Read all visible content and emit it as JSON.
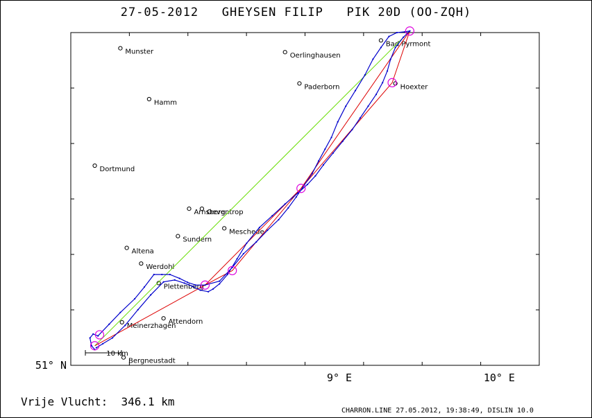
{
  "title": "27-05-2012   GHEYSEN FILIP   PIK 20D (OO-ZQH)",
  "summary": "Vrije Vlucht:  346.1 km",
  "footer": "CHARRON.LINE 27.05.2012, 19:38:49, DISLIN 10.0",
  "colors": {
    "track": "#0000cc",
    "task": "#dd0000",
    "free_flight": "#66dd00",
    "turnpoint": "#dd00dd"
  },
  "chart_data": {
    "type": "scatter",
    "xlim": [
      7.32,
      10.25
    ],
    "ylim": [
      51.0,
      51.85
    ],
    "x_ticks": [
      {
        "value": 9.0,
        "label": "9° E"
      },
      {
        "value": 10.0,
        "label": "10° E"
      }
    ],
    "y_ticks": [
      {
        "value": 51.0,
        "label": "51° N"
      }
    ],
    "scale_bar": {
      "km": 10,
      "label": "10 km"
    },
    "towns": [
      {
        "name": "Munster",
        "lon": 7.63,
        "lat": 51.81
      },
      {
        "name": "Oerlinghausen",
        "lon": 8.66,
        "lat": 51.8
      },
      {
        "name": "Bad Pyrmont",
        "lon": 9.26,
        "lat": 51.83
      },
      {
        "name": "Hoexter",
        "lon": 9.35,
        "lat": 51.72
      },
      {
        "name": "Hamm",
        "lon": 7.81,
        "lat": 51.68
      },
      {
        "name": "Paderborn",
        "lon": 8.75,
        "lat": 51.72
      },
      {
        "name": "Dortmund",
        "lon": 7.47,
        "lat": 51.51
      },
      {
        "name": "Arnsberg",
        "lon": 8.06,
        "lat": 51.4
      },
      {
        "name": "Oeventrop",
        "lon": 8.14,
        "lat": 51.4
      },
      {
        "name": "Altena",
        "lon": 7.67,
        "lat": 51.3
      },
      {
        "name": "Werdohl",
        "lon": 7.76,
        "lat": 51.26
      },
      {
        "name": "Sundern",
        "lon": 7.99,
        "lat": 51.33
      },
      {
        "name": "Meschede",
        "lon": 8.28,
        "lat": 51.35
      },
      {
        "name": "Plettenberg",
        "lon": 7.87,
        "lat": 51.21
      },
      {
        "name": "Attendorn",
        "lon": 7.9,
        "lat": 51.12
      },
      {
        "name": "Meinerzhagen",
        "lon": 7.64,
        "lat": 51.11
      },
      {
        "name": "Bergneustadt",
        "lon": 7.65,
        "lat": 51.02
      }
    ],
    "track": [
      [
        7.47,
        51.04
      ],
      [
        7.45,
        51.05
      ],
      [
        7.44,
        51.07
      ],
      [
        7.46,
        51.08
      ],
      [
        7.49,
        51.075
      ],
      [
        7.56,
        51.105
      ],
      [
        7.63,
        51.135
      ],
      [
        7.72,
        51.17
      ],
      [
        7.78,
        51.2
      ],
      [
        7.84,
        51.232
      ],
      [
        7.89,
        51.232
      ],
      [
        7.94,
        51.232
      ],
      [
        8.0,
        51.222
      ],
      [
        8.05,
        51.212
      ],
      [
        8.1,
        51.205
      ],
      [
        8.16,
        51.205
      ],
      [
        8.25,
        51.215
      ],
      [
        8.33,
        51.25
      ],
      [
        8.4,
        51.285
      ],
      [
        8.48,
        51.315
      ],
      [
        8.55,
        51.345
      ],
      [
        8.62,
        51.372
      ],
      [
        8.68,
        51.402
      ],
      [
        8.73,
        51.43
      ],
      [
        8.78,
        51.46
      ],
      [
        8.83,
        51.49
      ],
      [
        8.87,
        51.522
      ],
      [
        8.91,
        51.552
      ],
      [
        8.95,
        51.582
      ],
      [
        8.99,
        51.622
      ],
      [
        9.04,
        51.662
      ],
      [
        9.1,
        51.702
      ],
      [
        9.16,
        51.742
      ],
      [
        9.21,
        51.782
      ],
      [
        9.26,
        51.812
      ],
      [
        9.31,
        51.84
      ],
      [
        9.36,
        51.85
      ],
      [
        9.41,
        51.852
      ],
      [
        9.44,
        51.854
      ],
      [
        9.4,
        51.838
      ],
      [
        9.35,
        51.812
      ],
      [
        9.32,
        51.782
      ],
      [
        9.3,
        51.752
      ],
      [
        9.27,
        51.722
      ],
      [
        9.23,
        51.692
      ],
      [
        9.18,
        51.662
      ],
      [
        9.13,
        51.632
      ],
      [
        9.08,
        51.602
      ],
      [
        9.02,
        51.572
      ],
      [
        8.96,
        51.542
      ],
      [
        8.9,
        51.512
      ],
      [
        8.85,
        51.484
      ],
      [
        8.8,
        51.462
      ],
      [
        8.74,
        51.44
      ],
      [
        8.66,
        51.412
      ],
      [
        8.58,
        51.382
      ],
      [
        8.5,
        51.352
      ],
      [
        8.42,
        51.312
      ],
      [
        8.36,
        51.272
      ],
      [
        8.3,
        51.232
      ],
      [
        8.25,
        51.208
      ],
      [
        8.21,
        51.195
      ],
      [
        8.18,
        51.188
      ],
      [
        8.13,
        51.192
      ],
      [
        8.08,
        51.202
      ],
      [
        8.03,
        51.21
      ],
      [
        7.97,
        51.218
      ],
      [
        7.9,
        51.213
      ],
      [
        7.82,
        51.18
      ],
      [
        7.74,
        51.142
      ],
      [
        7.66,
        51.102
      ],
      [
        7.58,
        51.07
      ],
      [
        7.52,
        51.055
      ],
      [
        7.48,
        51.045
      ]
    ],
    "task_route": [
      [
        7.47,
        51.05
      ],
      [
        8.16,
        51.205
      ],
      [
        8.33,
        51.242
      ],
      [
        8.76,
        51.452
      ],
      [
        9.33,
        51.722
      ],
      [
        9.44,
        51.854
      ],
      [
        8.76,
        51.452
      ],
      [
        8.16,
        51.205
      ],
      [
        7.47,
        51.05
      ]
    ],
    "free_flight_route": [
      [
        7.47,
        51.05
      ],
      [
        9.44,
        51.854
      ]
    ],
    "turnpoints": [
      [
        7.47,
        51.05
      ],
      [
        7.5,
        51.078
      ],
      [
        8.16,
        51.205
      ],
      [
        8.33,
        51.242
      ],
      [
        8.76,
        51.452
      ],
      [
        9.33,
        51.722
      ],
      [
        9.44,
        51.854
      ]
    ]
  }
}
